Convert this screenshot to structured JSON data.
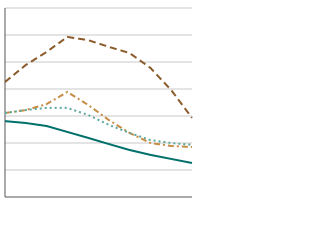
{
  "chart_data": {
    "type": "line",
    "categories": [
      null,
      null,
      null,
      null,
      null,
      null,
      null,
      null,
      null,
      null
    ],
    "ylim": [
      0,
      7
    ],
    "yticks": [
      0,
      1,
      2,
      3,
      4,
      5,
      6,
      7
    ],
    "grid": true,
    "series": [
      {
        "color": "#8b5a2b",
        "dash": "7,4",
        "values": [
          4.26,
          4.89,
          5.37,
          5.93,
          5.81,
          5.56,
          5.33,
          4.78,
          3.96,
          2.93
        ]
      },
      {
        "color": "#c68c44",
        "dash": "6,3,2,3",
        "values": [
          3.11,
          3.22,
          3.44,
          3.89,
          3.41,
          2.85,
          2.37,
          2.0,
          1.89,
          1.85
        ]
      },
      {
        "color": "#5ba89c",
        "dash": "2,3",
        "values": [
          3.11,
          3.22,
          3.3,
          3.3,
          3.04,
          2.67,
          2.37,
          2.11,
          2.0,
          1.93
        ]
      },
      {
        "color": "#00706b",
        "dash": "",
        "values": [
          2.81,
          2.74,
          2.63,
          2.41,
          2.19,
          1.96,
          1.74,
          1.56,
          1.41,
          1.26
        ]
      }
    ]
  }
}
